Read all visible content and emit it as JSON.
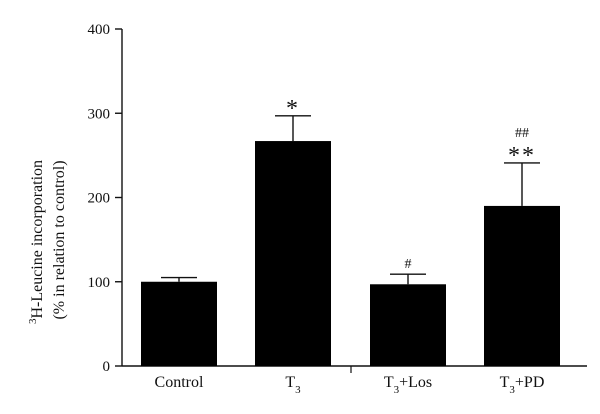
{
  "chart_data": {
    "type": "bar",
    "categories": [
      "Control",
      "T3",
      "T3+Los",
      "T3+PD"
    ],
    "category_labels": [
      {
        "base": "Control",
        "sub": "",
        "rest": ""
      },
      {
        "base": "T",
        "sub": "3",
        "rest": ""
      },
      {
        "base": "T",
        "sub": "3",
        "rest": "+Los"
      },
      {
        "base": "T",
        "sub": "3",
        "rest": "+PD"
      }
    ],
    "values": [
      100,
      267,
      97,
      190
    ],
    "errors": [
      5,
      30,
      12,
      51
    ],
    "significance": [
      {
        "category": "Control",
        "marks": []
      },
      {
        "category": "T3",
        "marks": [
          "*"
        ]
      },
      {
        "category": "T3+Los",
        "marks": [
          "#"
        ]
      },
      {
        "category": "T3+PD",
        "marks": [
          "**",
          "##"
        ]
      }
    ],
    "ylabel_line1_sup": "3",
    "ylabel_line1": "H-Leucine incorporation",
    "ylabel_line2": "(% in relation to control)",
    "ylim": [
      0,
      400
    ],
    "yticks": [
      0,
      100,
      200,
      300,
      400
    ],
    "bar_color": "#000000",
    "grid": false
  }
}
